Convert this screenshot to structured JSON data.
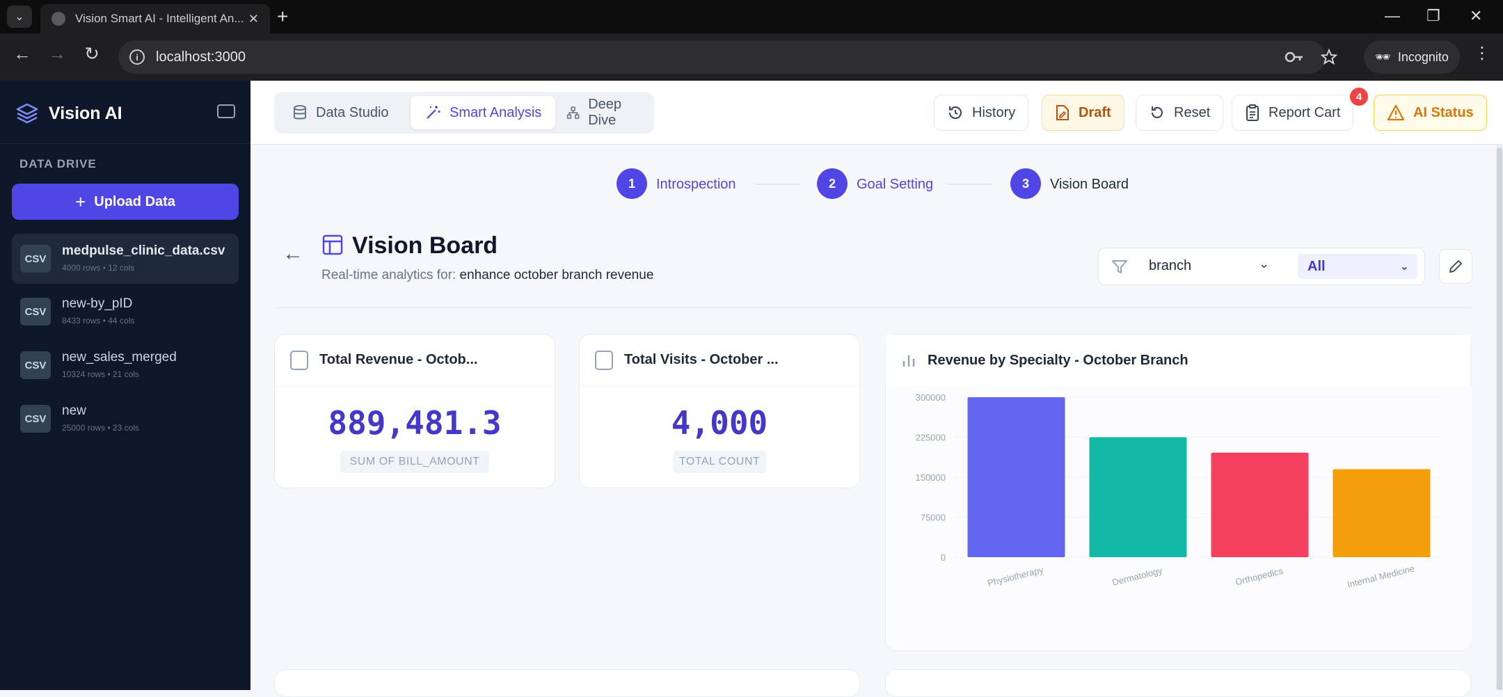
{
  "browser": {
    "tab_title": "Vision Smart AI - Intelligent An...",
    "url": "localhost:3000",
    "profile_label": "Incognito"
  },
  "sidebar": {
    "brand": "Vision AI",
    "section_label": "DATA DRIVE",
    "upload_label": "Upload Data",
    "files": [
      {
        "badge": "CSV",
        "name": "medpulse_clinic_data.csv",
        "meta": "4000 rows • 12 cols"
      },
      {
        "badge": "CSV",
        "name": "new-by_pID",
        "meta": "8433 rows • 44 cols"
      },
      {
        "badge": "CSV",
        "name": "new_sales_merged",
        "meta": "10324 rows • 21 cols"
      },
      {
        "badge": "CSV",
        "name": "new",
        "meta": "25000 rows • 23 cols"
      }
    ]
  },
  "appbar": {
    "modes": [
      "Data Studio",
      "Smart Analysis",
      "Deep Dive"
    ],
    "history": "History",
    "draft": "Draft",
    "reset": "Reset",
    "report_cart": "Report Cart",
    "cart_count": "4",
    "ai_status": "AI Status"
  },
  "steps": [
    {
      "num": "1",
      "label": "Introspection"
    },
    {
      "num": "2",
      "label": "Goal Setting"
    },
    {
      "num": "3",
      "label": "Vision Board"
    }
  ],
  "board": {
    "title": "Vision Board",
    "subtitle_prefix": "Real-time analytics for:",
    "subtitle_goal": "enhance october branch revenue",
    "filter_field": "branch",
    "filter_value": "All"
  },
  "kpis": [
    {
      "title": "Total Revenue - Octob...",
      "value": "889,481.3",
      "label": "SUM OF BILL_AMOUNT"
    },
    {
      "title": "Total Visits - October ...",
      "value": "4,000",
      "label": "TOTAL COUNT"
    }
  ],
  "chart_data": {
    "type": "bar",
    "title": "Revenue by Specialty - October Branch",
    "categories": [
      "Physiotherapy",
      "Dermatology",
      "Orthopedics",
      "Internal Medicine"
    ],
    "values": [
      300000,
      225000,
      196000,
      165000
    ],
    "ylim": [
      0,
      300000
    ],
    "yticks": [
      0,
      75000,
      150000,
      225000,
      300000
    ],
    "ytick_labels": [
      "0",
      "75000",
      "150000",
      "225000",
      "300000"
    ],
    "colors": [
      "#6366f1",
      "#14b8a6",
      "#f43f5e",
      "#f59e0b"
    ],
    "xlabel": "",
    "ylabel": ""
  }
}
